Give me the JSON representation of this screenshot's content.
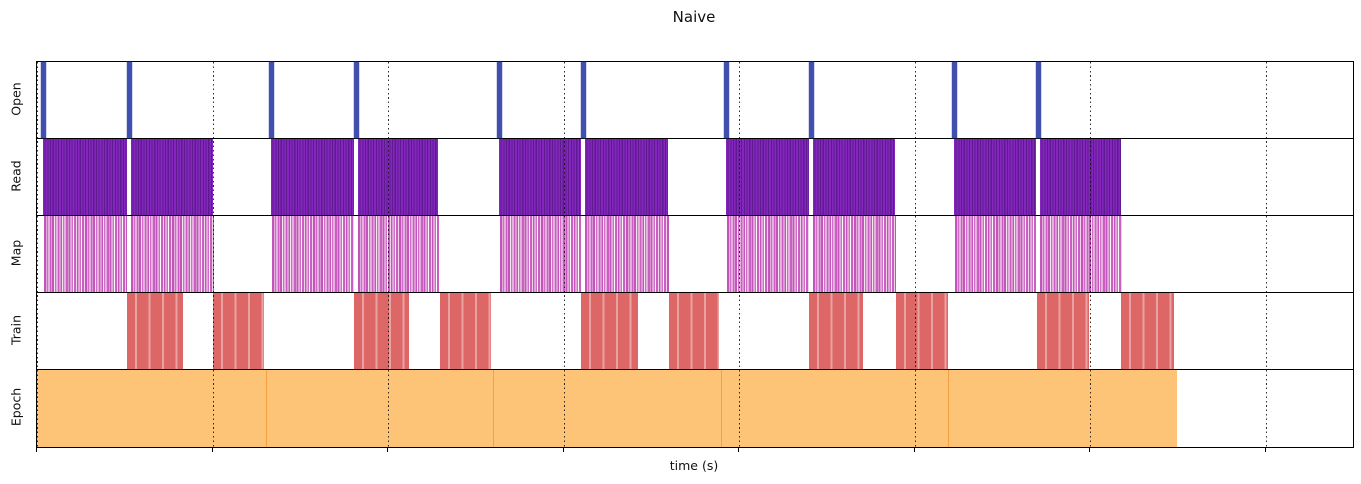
{
  "title": "Naive",
  "xlabel": "time (s)",
  "chart_data": {
    "type": "timeline",
    "title": "Naive",
    "xlabel": "time (s)",
    "x_axis": {
      "range_units": [
        0,
        1316
      ],
      "tick_positions": [
        0,
        175.5,
        351,
        526.5,
        702,
        877.5,
        1053,
        1228.5
      ],
      "tick_labels_visible": false,
      "grid_style": "dotted vertical lines drawn on top of bars"
    },
    "lane_order_top_to_bottom": [
      "Open",
      "Read",
      "Map",
      "Train",
      "Epoch"
    ],
    "lanes": [
      {
        "label": "Open",
        "color": "#414fae",
        "pattern": "thin solid event bars",
        "intervals": [
          [
            4,
            8.5
          ],
          [
            90,
            94.5
          ],
          [
            232,
            236.5
          ],
          [
            317,
            321.5
          ],
          [
            460,
            464.5
          ],
          [
            544,
            548.5
          ],
          [
            687,
            691.5
          ],
          [
            772,
            776.5
          ],
          [
            915,
            919.5
          ],
          [
            999,
            1003.5
          ]
        ]
      },
      {
        "label": "Read",
        "color": "#7a1fae",
        "pattern": "dense dark-purple vertical stripes",
        "intervals": [
          [
            6,
            90
          ],
          [
            94,
            176
          ],
          [
            234,
            317
          ],
          [
            321,
            401
          ],
          [
            462,
            544
          ],
          [
            548,
            631
          ],
          [
            689,
            772
          ],
          [
            776,
            858
          ],
          [
            917,
            999
          ],
          [
            1003,
            1084
          ]
        ]
      },
      {
        "label": "Map",
        "color": "#c75fc0",
        "pattern": "medium-density pink vertical stripes",
        "intervals": [
          [
            7,
            90
          ],
          [
            94,
            177
          ],
          [
            235,
            317
          ],
          [
            321,
            402
          ],
          [
            463,
            544
          ],
          [
            548,
            632
          ],
          [
            690,
            772
          ],
          [
            776,
            859
          ],
          [
            918,
            999
          ],
          [
            1003,
            1085
          ]
        ]
      },
      {
        "label": "Train",
        "color": "#dd6767",
        "pattern": "solid red blocks with faint lighter step stripes",
        "intervals": [
          [
            90,
            146
          ],
          [
            176,
            227
          ],
          [
            317,
            372
          ],
          [
            403,
            454
          ],
          [
            544,
            601
          ],
          [
            632,
            682
          ],
          [
            772,
            826
          ],
          [
            859,
            911
          ],
          [
            1000,
            1052
          ],
          [
            1084,
            1137
          ]
        ]
      },
      {
        "label": "Epoch",
        "color": "#fdc377",
        "pattern": "continuous orange segments with faint darker boundaries",
        "intervals": [
          [
            0,
            229
          ],
          [
            229,
            456
          ],
          [
            456,
            684
          ],
          [
            684,
            911
          ],
          [
            911,
            1139
          ]
        ]
      }
    ]
  }
}
